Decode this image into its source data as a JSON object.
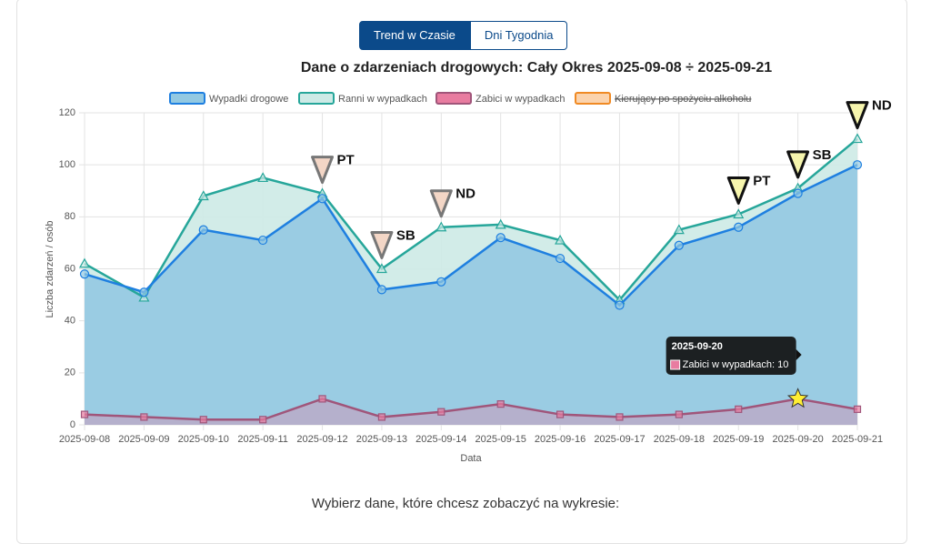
{
  "buttons": [
    {
      "label": "Trend w Czasie",
      "active": true
    },
    {
      "label": "Dni Tygodnia",
      "active": false
    }
  ],
  "chart_data": {
    "type": "line",
    "title": "Dane o zdarzeniach drogowych: Cały Okres 2025-09-08 ÷ 2025-09-21",
    "y_label": "Liczba zdarzeń / osób",
    "x_label": "Data",
    "categories": [
      "2025-09-08",
      "2025-09-09",
      "2025-09-10",
      "2025-09-11",
      "2025-09-12",
      "2025-09-13",
      "2025-09-14",
      "2025-09-15",
      "2025-09-16",
      "2025-09-17",
      "2025-09-18",
      "2025-09-19",
      "2025-09-20",
      "2025-09-21"
    ],
    "ylim": [
      0,
      120
    ],
    "yticks": [
      0,
      20,
      40,
      60,
      80,
      100,
      120
    ],
    "grid": true,
    "legend": "top",
    "series": [
      {
        "name": "Wypadki drogowe",
        "color": "#1e7fe0",
        "fill": "#93c9e2",
        "marker": "circle",
        "values": [
          58,
          51,
          75,
          71,
          87,
          52,
          55,
          72,
          64,
          46,
          69,
          76,
          89,
          100
        ]
      },
      {
        "name": "Ranni w wypadkach",
        "color": "#26a69a",
        "fill": "#cdeae6",
        "marker": "triangle",
        "values": [
          62,
          49,
          88,
          95,
          89,
          60,
          76,
          77,
          71,
          48,
          75,
          81,
          91,
          110
        ]
      },
      {
        "name": "Zabici w wypadkach",
        "color": "#a0557a",
        "fill": "#e87ca0",
        "marker": "square",
        "values": [
          4,
          3,
          2,
          2,
          10,
          3,
          5,
          8,
          4,
          3,
          4,
          6,
          10,
          6
        ]
      },
      {
        "name": "Kierujący po spożyciu alkoholu",
        "color": "#f08a24",
        "fill": "#fbd3ad",
        "hidden": true,
        "marker": "circle",
        "values": [
          null,
          null,
          null,
          null,
          null,
          null,
          null,
          null,
          null,
          null,
          null,
          null,
          null,
          null
        ]
      }
    ],
    "annotations": [
      {
        "x": "2025-09-12",
        "label": "PT",
        "color": "#f3d6c6",
        "stroke": "#777777"
      },
      {
        "x": "2025-09-13",
        "label": "SB",
        "color": "#f3d6c6",
        "stroke": "#777777"
      },
      {
        "x": "2025-09-14",
        "label": "ND",
        "color": "#f3d6c6",
        "stroke": "#777777"
      },
      {
        "x": "2025-09-19",
        "label": "PT",
        "color": "#f6f5ad",
        "stroke": "#111111"
      },
      {
        "x": "2025-09-20",
        "label": "SB",
        "color": "#f6f5ad",
        "stroke": "#111111"
      },
      {
        "x": "2025-09-21",
        "label": "ND",
        "color": "#f6f5ad",
        "stroke": "#111111"
      }
    ],
    "tooltip": {
      "title": "2025-09-20",
      "text": "Zabici w wypadkach: 10",
      "series": 2,
      "index": 12
    }
  },
  "footer_text": "Wybierz dane, które chcesz zobaczyć na wykresie:"
}
